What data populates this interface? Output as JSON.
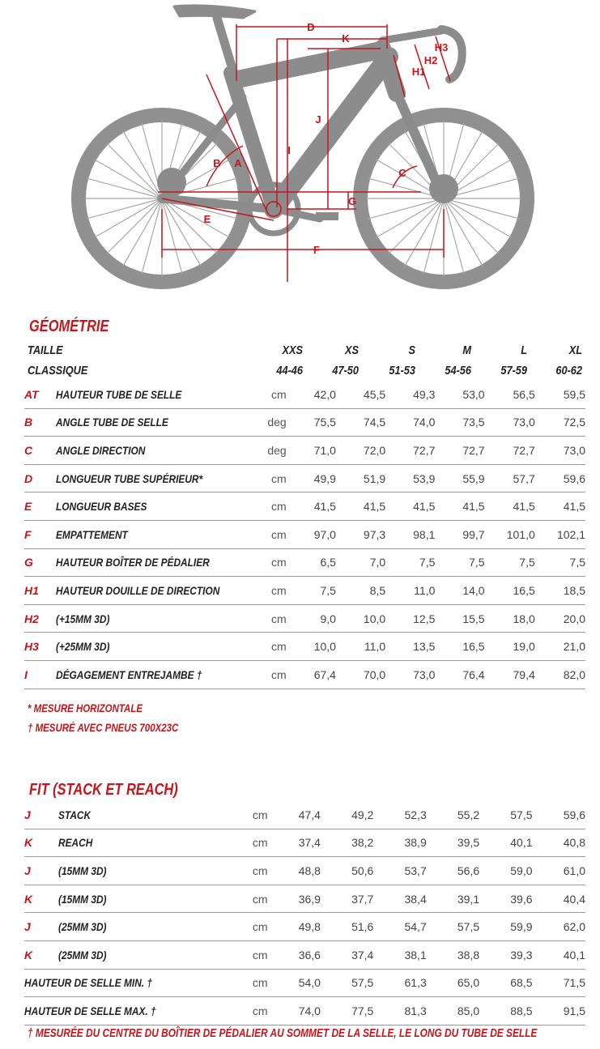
{
  "diagram": {
    "labels": [
      "D",
      "K",
      "H3",
      "H2",
      "H1",
      "J",
      "I",
      "B",
      "A",
      "C",
      "G",
      "E",
      "F"
    ]
  },
  "geometry": {
    "title": "GÉOMÉTRIE",
    "header_left_1": "TAILLE",
    "header_left_2": "CLASSIQUE",
    "sizes": [
      "XXS",
      "XS",
      "S",
      "M",
      "L",
      "XL"
    ],
    "size_ranges": [
      "44-46",
      "47-50",
      "51-53",
      "54-56",
      "57-59",
      "60-62"
    ],
    "rows": [
      {
        "code": "AT",
        "label": "HAUTEUR TUBE DE SELLE",
        "unit": "cm",
        "values": [
          "42,0",
          "45,5",
          "49,3",
          "53,0",
          "56,5",
          "59,5"
        ]
      },
      {
        "code": "B",
        "label": "ANGLE TUBE DE SELLE",
        "unit": "deg",
        "values": [
          "75,5",
          "74,5",
          "74,0",
          "73,5",
          "73,0",
          "72,5"
        ]
      },
      {
        "code": "C",
        "label": "ANGLE DIRECTION",
        "unit": "deg",
        "values": [
          "71,0",
          "72,0",
          "72,7",
          "72,7",
          "72,7",
          "73,0"
        ]
      },
      {
        "code": "D",
        "label": "LONGUEUR TUBE SUPÉRIEUR*",
        "unit": "cm",
        "values": [
          "49,9",
          "51,9",
          "53,9",
          "55,9",
          "57,7",
          "59,6"
        ]
      },
      {
        "code": "E",
        "label": "LONGUEUR BASES",
        "unit": "cm",
        "values": [
          "41,5",
          "41,5",
          "41,5",
          "41,5",
          "41,5",
          "41,5"
        ]
      },
      {
        "code": "F",
        "label": "EMPATTEMENT",
        "unit": "cm",
        "values": [
          "97,0",
          "97,3",
          "98,1",
          "99,7",
          "101,0",
          "102,1"
        ]
      },
      {
        "code": "G",
        "label": "HAUTEUR BOÎTER DE PÉDALIER",
        "unit": "cm",
        "values": [
          "6,5",
          "7,0",
          "7,5",
          "7,5",
          "7,5",
          "7,5"
        ]
      },
      {
        "code": "H1",
        "label": "HAUTEUR DOUILLE DE DIRECTION",
        "unit": "cm",
        "values": [
          "7,5",
          "8,5",
          "11,0",
          "14,0",
          "16,5",
          "18,5"
        ]
      },
      {
        "code": "H2",
        "label": "(+15MM 3D)",
        "unit": "cm",
        "values": [
          "9,0",
          "10,0",
          "12,5",
          "15,5",
          "18,0",
          "20,0"
        ]
      },
      {
        "code": "H3",
        "label": "(+25MM 3D)",
        "unit": "cm",
        "values": [
          "10,0",
          "11,0",
          "13,5",
          "16,5",
          "19,0",
          "21,0"
        ]
      },
      {
        "code": "I",
        "label": "DÉGAGEMENT ENTREJAMBE †",
        "unit": "cm",
        "values": [
          "67,4",
          "70,0",
          "73,0",
          "76,4",
          "79,4",
          "82,0"
        ]
      }
    ],
    "notes": [
      "* MESURE HORIZONTALE",
      "† MESURÉ AVEC PNEUS 700X23C"
    ]
  },
  "fit": {
    "title": "FIT (STACK ET REACH)",
    "rows": [
      {
        "code": "J",
        "label": "STACK",
        "unit": "cm",
        "values": [
          "47,4",
          "49,2",
          "52,3",
          "55,2",
          "57,5",
          "59,6"
        ]
      },
      {
        "code": "K",
        "label": "REACH",
        "unit": "cm",
        "values": [
          "37,4",
          "38,2",
          "38,9",
          "39,5",
          "40,1",
          "40,8"
        ]
      },
      {
        "code": "J",
        "label": "(15MM 3D)",
        "unit": "cm",
        "values": [
          "48,8",
          "50,6",
          "53,7",
          "56,6",
          "59,0",
          "61,0"
        ]
      },
      {
        "code": "K",
        "label": "(15MM 3D)",
        "unit": "cm",
        "values": [
          "36,9",
          "37,7",
          "38,4",
          "39,1",
          "39,6",
          "40,4"
        ]
      },
      {
        "code": "J",
        "label": "(25MM 3D)",
        "unit": "cm",
        "values": [
          "49,8",
          "51,6",
          "54,7",
          "57,5",
          "59,9",
          "62,0"
        ]
      },
      {
        "code": "K",
        "label": "(25MM 3D)",
        "unit": "cm",
        "values": [
          "36,6",
          "37,4",
          "38,1",
          "38,8",
          "39,3",
          "40,1"
        ]
      }
    ],
    "full_rows": [
      {
        "label": "HAUTEUR DE SELLE MIN. †",
        "unit": "cm",
        "values": [
          "54,0",
          "57,5",
          "61,3",
          "65,0",
          "68,5",
          "71,5"
        ]
      },
      {
        "label": "HAUTEUR DE SELLE MAX. †",
        "unit": "cm",
        "values": [
          "74,0",
          "77,5",
          "81,3",
          "85,0",
          "88,5",
          "91,5"
        ]
      }
    ],
    "footnote": "† MESURÉE DU CENTRE DU BOÎTIER DE PÉDALIER AU SOMMET DE LA SELLE, LE LONG DU TUBE DE SELLE"
  },
  "colors": {
    "accent": "#c4161c",
    "bike": "#8c8c8c"
  }
}
